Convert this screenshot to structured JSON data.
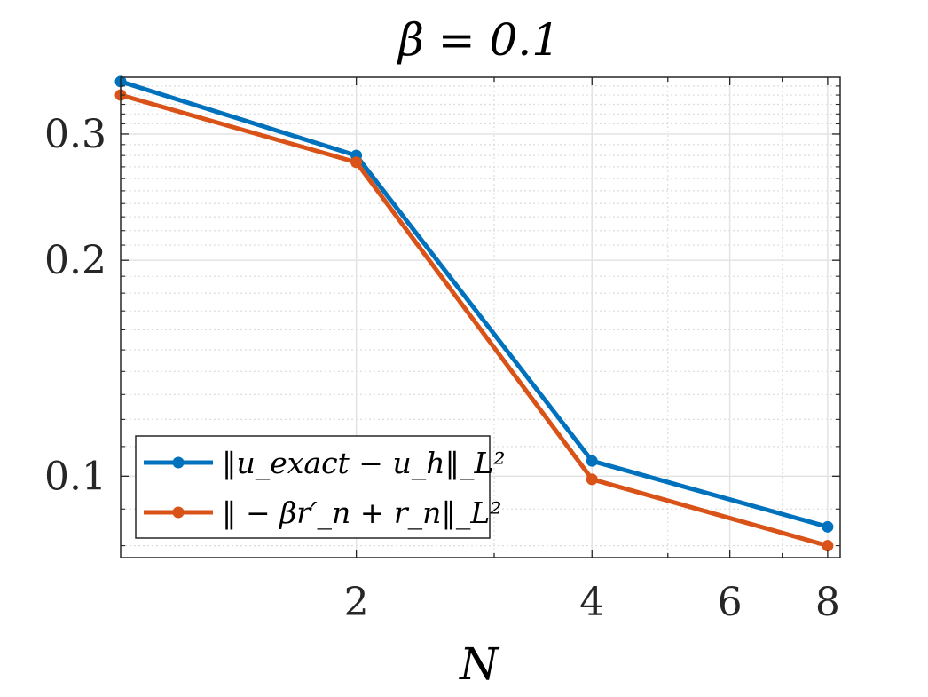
{
  "chart_data": {
    "type": "line",
    "title": "β = 0.1",
    "xlabel": "N",
    "ylabel": "",
    "x_scale": "log",
    "y_scale": "log",
    "xlim": [
      1,
      8.3
    ],
    "ylim": [
      0.077,
      0.36
    ],
    "grid": true,
    "minor_grid": true,
    "legend_placement": "bottom-left",
    "x_ticks": [
      2,
      4,
      6,
      8
    ],
    "x_tick_labels": [
      "2",
      "4",
      "6",
      "8"
    ],
    "y_ticks": [
      0.1,
      0.2,
      0.3
    ],
    "y_tick_labels": [
      "0.1",
      "0.2",
      "0.3"
    ],
    "series": [
      {
        "name": "‖u_exact − u_h‖_L²",
        "color": "#0072BD",
        "x": [
          1,
          2,
          4,
          8
        ],
        "y": [
          0.355,
          0.28,
          0.105,
          0.085
        ]
      },
      {
        "name": "‖ − βr′_n + r_n‖_L²",
        "color": "#D95319",
        "x": [
          1,
          2,
          4,
          8
        ],
        "y": [
          0.34,
          0.274,
          0.099,
          0.08
        ]
      }
    ]
  }
}
